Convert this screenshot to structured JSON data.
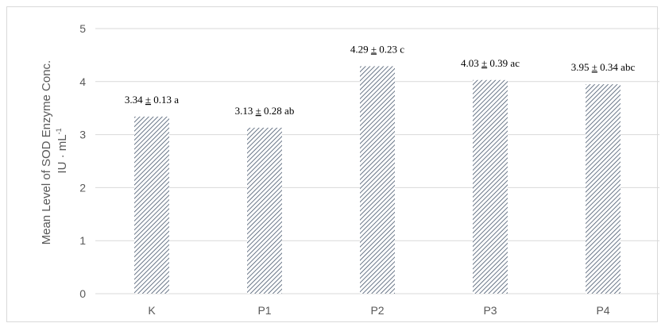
{
  "chart_data": {
    "type": "bar",
    "title": "",
    "xlabel": "",
    "ylabel_line1": "Mean Level of SOD Enzyme Conc.",
    "ylabel_line2": "IU · mL",
    "ylabel_superscript": "-1",
    "categories": [
      "K",
      "P1",
      "P2",
      "P3",
      "P4"
    ],
    "values": [
      3.34,
      3.13,
      4.29,
      4.03,
      3.95
    ],
    "data_labels": [
      {
        "value": "3.34",
        "pm": "±",
        "error": "0.13",
        "group": "a"
      },
      {
        "value": "3.13",
        "pm": "±",
        "error": "0.28",
        "group": "ab"
      },
      {
        "value": "4.29",
        "pm": "±",
        "error": "0.23",
        "group": "c"
      },
      {
        "value": "4.03",
        "pm": "±",
        "error": "0.39",
        "group": "ac"
      },
      {
        "value": "3.95",
        "pm": "±",
        "error": "0.34",
        "group": "abc"
      }
    ],
    "yticks": [
      "0",
      "1",
      "2",
      "3",
      "4",
      "5"
    ],
    "ylim": [
      0,
      5
    ],
    "grid": true,
    "legend": "none",
    "colors": {
      "bar_hatch": "#44546a",
      "gridline": "#d9d9d9",
      "axis_text": "#595959",
      "label_text": "#000000"
    }
  }
}
